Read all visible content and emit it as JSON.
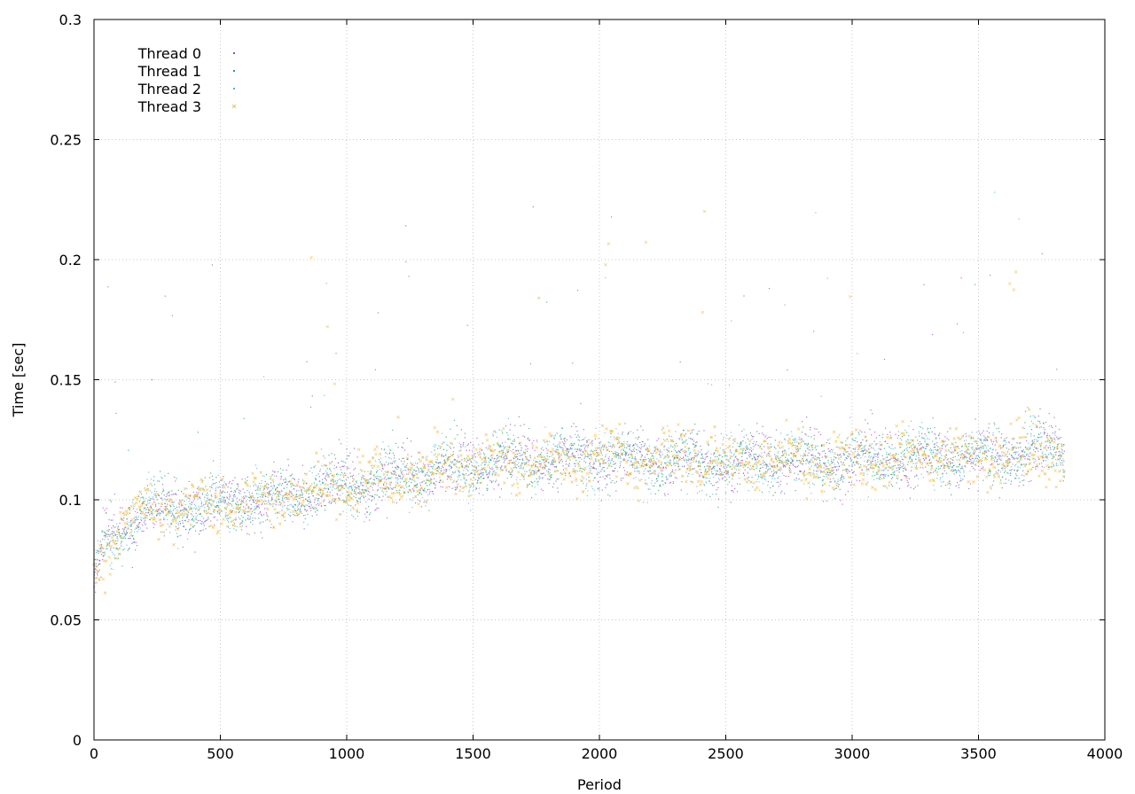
{
  "chart_data": {
    "type": "scatter",
    "title": "",
    "xlabel": "Period",
    "ylabel": "Time [sec]",
    "xlim": [
      0,
      4000
    ],
    "ylim": [
      0,
      0.3
    ],
    "x_ticks": [
      0,
      500,
      1000,
      1500,
      2000,
      2500,
      3000,
      3500,
      4000
    ],
    "y_ticks": [
      0,
      0.05,
      0.1,
      0.15,
      0.2,
      0.25,
      0.3
    ],
    "x_tick_labels": [
      "0",
      "500",
      "1000",
      "1500",
      "2000",
      "2500",
      "3000",
      "3500",
      "4000"
    ],
    "y_tick_labels": [
      "0",
      "0.05",
      "0.1",
      "0.15",
      "0.2",
      "0.25",
      "0.3"
    ],
    "grid": true,
    "legend_position": "top-left",
    "x_max_data": 3840,
    "series": [
      {
        "name": "Thread 0",
        "color": "#9b3fd4",
        "marker": "dot"
      },
      {
        "name": "Thread 1",
        "color": "#1aa35a",
        "marker": "dot"
      },
      {
        "name": "Thread 2",
        "color": "#44b4e6",
        "marker": "dot"
      },
      {
        "name": "Thread 3",
        "color": "#f0b020",
        "marker": "x"
      }
    ],
    "trend": {
      "x": [
        0,
        50,
        100,
        200,
        300,
        500,
        700,
        1000,
        1200,
        1500,
        1700,
        2000,
        2200,
        2500,
        2800,
        3000,
        3200,
        3500,
        3840
      ],
      "y": [
        0.068,
        0.082,
        0.088,
        0.094,
        0.096,
        0.098,
        0.101,
        0.106,
        0.11,
        0.114,
        0.116,
        0.118,
        0.117,
        0.116,
        0.117,
        0.116,
        0.118,
        0.118,
        0.121
      ]
    }
  }
}
